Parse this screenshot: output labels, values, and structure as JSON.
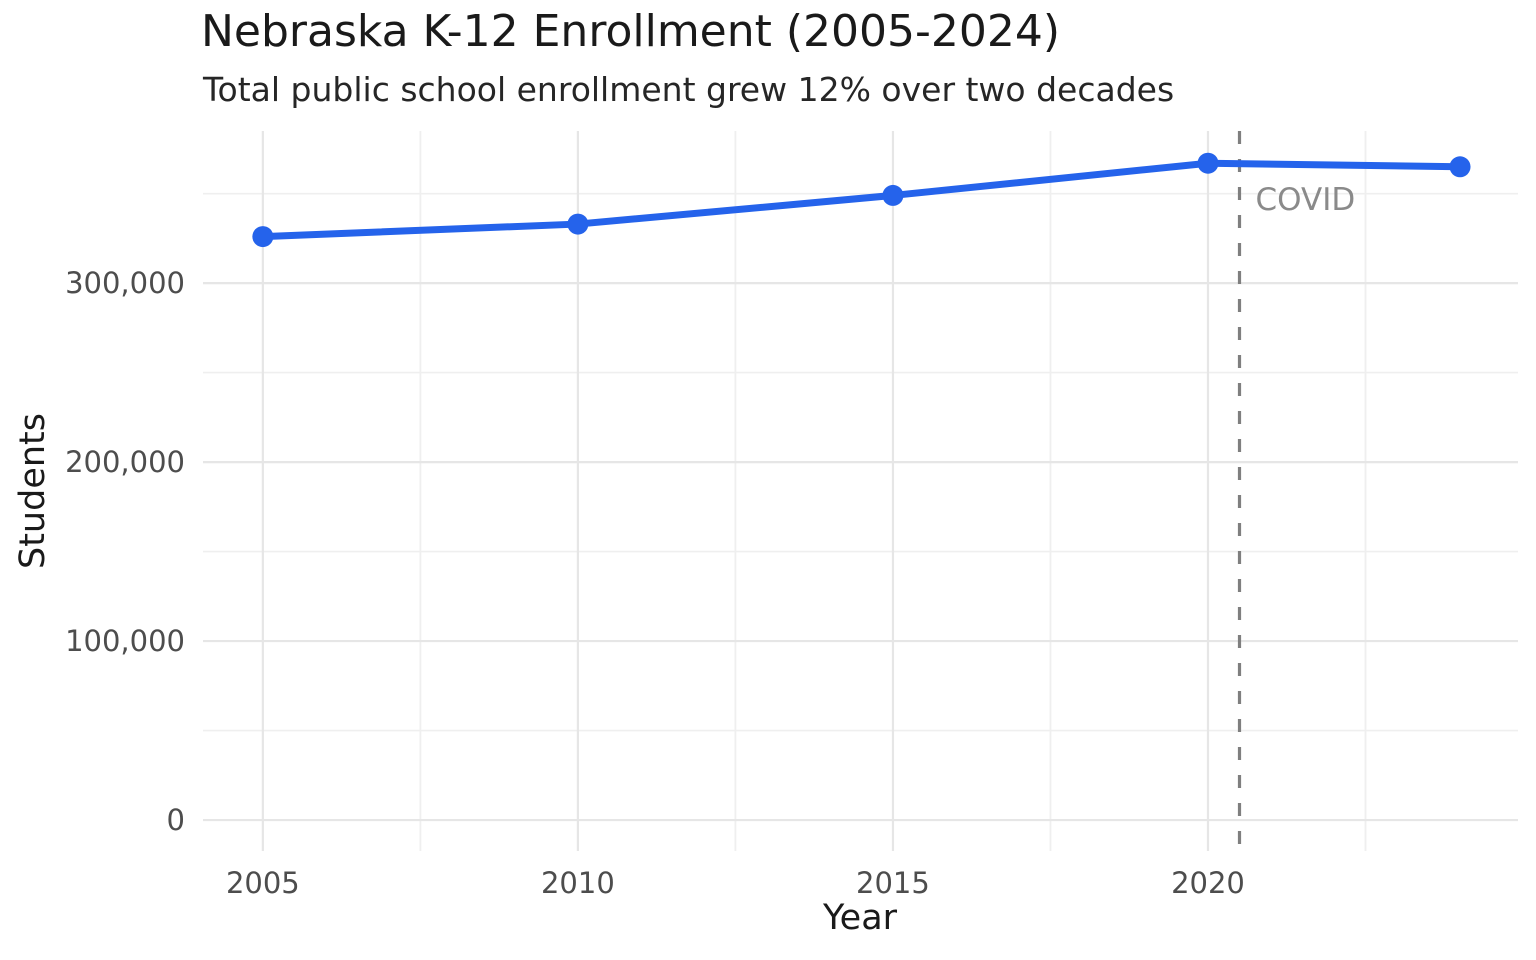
{
  "page": {
    "background": "#ffffff"
  },
  "chart_data": {
    "type": "line",
    "title": "Nebraska K-12 Enrollment (2005-2024)",
    "subtitle": "Total public school enrollment grew 12% over two decades",
    "xlabel": "Year",
    "ylabel": "Students",
    "x": [
      2005,
      2010,
      2015,
      2020,
      2024
    ],
    "series": [
      {
        "name": "Total public school enrollment",
        "values": [
          326000,
          333000,
          349000,
          367000,
          365000
        ]
      }
    ],
    "xlim": [
      2004.05,
      2024.92
    ],
    "ylim": [
      -17300,
      385000
    ],
    "x_ticks": [
      2005,
      2010,
      2015,
      2020
    ],
    "x_tick_labels": [
      "2005",
      "2010",
      "2015",
      "2020"
    ],
    "y_ticks": [
      0,
      100000,
      200000,
      300000
    ],
    "y_tick_labels": [
      "0",
      "100,000",
      "200,000",
      "300,000"
    ],
    "x_minor_gridlines": [
      2007.5,
      2012.5,
      2017.5,
      2022.5
    ],
    "y_minor_gridlines": [
      50000,
      150000,
      250000,
      350000
    ],
    "grid": true,
    "legend": "none",
    "annotation": {
      "vline_x": 2020.5,
      "label": "COVID",
      "line_style": "dashed"
    },
    "colors": {
      "line": "#2563eb",
      "point": "#2563eb",
      "grid_major": "#e6e6e6",
      "grid_minor": "#efefef",
      "vline": "#7f7f7f",
      "annotation_text": "#8a8a8a",
      "tick_text": "#4d4d4d",
      "title_text": "#1a1a1a"
    }
  }
}
